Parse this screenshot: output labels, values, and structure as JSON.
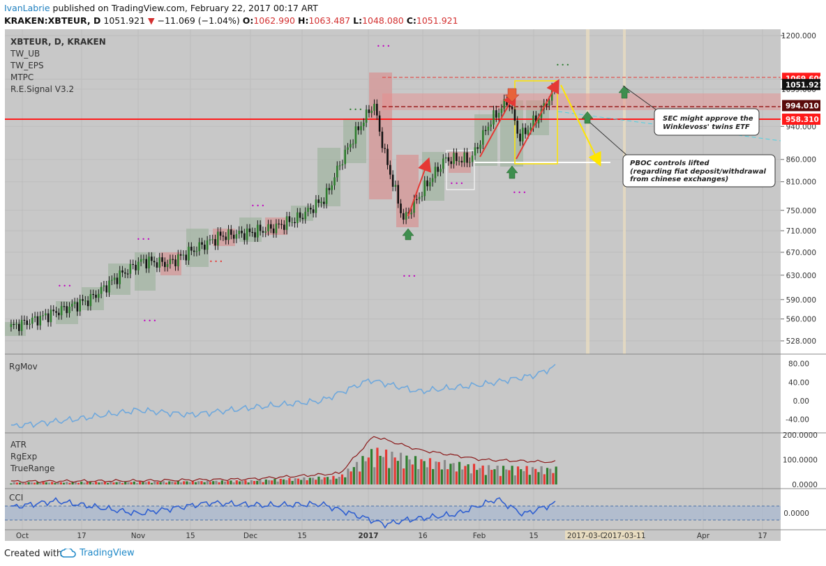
{
  "header": {
    "author": "IvanLabrie",
    "published_text": "published on TradingView.com, February 22, 2017 00:17 ART",
    "symbol": "KRAKEN:XBTEUR, D",
    "last": "1051.921",
    "change": "−11.069 (−1.04%)",
    "o_label": "O:",
    "o": "1062.990",
    "h_label": "H:",
    "h": "1063.487",
    "l_label": "L:",
    "l": "1048.080",
    "c_label": "C:",
    "c": "1051.921"
  },
  "legend": [
    "XBTEUR, D, KRAKEN",
    "TW_UB",
    "TW_EPS",
    "MTPC",
    "R.E.Signal V3.2"
  ],
  "price_labels": [
    {
      "text": "1069.600",
      "value": 1069.6,
      "color": "#ff1a1a"
    },
    {
      "text": "1051.921",
      "value": 1051.921,
      "color": "#111111"
    },
    {
      "text": "994.010",
      "value": 994.01,
      "color": "#5a0a0a"
    },
    {
      "text": "958.310",
      "value": 958.31,
      "color": "#ff1a1a"
    }
  ],
  "annotations": [
    {
      "text": "SEC might approve the Winklevoss' twins ETF"
    },
    {
      "text": "PBOC controls lifted (regarding fiat deposit/withdrawal from chinese exchanges)"
    }
  ],
  "panes": {
    "rgmov": {
      "label": "RgMov"
    },
    "atr": {
      "labels": [
        "ATR",
        "RgExp",
        "TrueRange"
      ]
    },
    "cci": {
      "label": "CCI"
    }
  },
  "colors": {
    "up": "#2e7d2e",
    "down": "#e53935",
    "ma": "#6fa8dc",
    "grid": "#c6c6c6",
    "bg": "#c8c8c8",
    "accent": "#1e88c8"
  },
  "footer": {
    "made_with": "Created with",
    "brand": "TradingView"
  },
  "chart_data": {
    "type": "candlestick",
    "title": "XBTEUR, D, KRAKEN",
    "price_axis": {
      "scale": "log",
      "ticks": [
        "1200.000",
        "1067.000",
        "1039.000",
        "940.000",
        "860.000",
        "810.000",
        "750.000",
        "710.000",
        "670.000",
        "630.000",
        "590.000",
        "560.000",
        "528.000"
      ],
      "ylim": [
        500,
        1240
      ]
    },
    "time_axis": {
      "ticks": [
        "Oct",
        "17",
        "Nov",
        "15",
        "Dec",
        "15",
        "2017",
        "16",
        "Feb",
        "15",
        "2017-03-0",
        "2017-03-11",
        "Apr",
        "17"
      ]
    },
    "close_path": [
      {
        "x": "2016-09-28",
        "close": 548
      },
      {
        "x": "2016-10-05",
        "close": 560
      },
      {
        "x": "2016-10-12",
        "close": 575
      },
      {
        "x": "2016-10-19",
        "close": 590
      },
      {
        "x": "2016-10-26",
        "close": 625
      },
      {
        "x": "2016-11-02",
        "close": 655
      },
      {
        "x": "2016-11-09",
        "close": 650
      },
      {
        "x": "2016-11-16",
        "close": 675
      },
      {
        "x": "2016-11-23",
        "close": 700
      },
      {
        "x": "2016-11-30",
        "close": 705
      },
      {
        "x": "2016-12-07",
        "close": 715
      },
      {
        "x": "2016-12-14",
        "close": 735
      },
      {
        "x": "2016-12-21",
        "close": 775
      },
      {
        "x": "2016-12-25",
        "close": 850
      },
      {
        "x": "2016-12-29",
        "close": 920
      },
      {
        "x": "2017-01-03",
        "close": 1000
      },
      {
        "x": "2017-01-06",
        "close": 870
      },
      {
        "x": "2017-01-11",
        "close": 730
      },
      {
        "x": "2017-01-16",
        "close": 790
      },
      {
        "x": "2017-01-22",
        "close": 860
      },
      {
        "x": "2017-01-29",
        "close": 860
      },
      {
        "x": "2017-02-03",
        "close": 950
      },
      {
        "x": "2017-02-08",
        "close": 1010
      },
      {
        "x": "2017-02-11",
        "close": 910
      },
      {
        "x": "2017-02-16",
        "close": 965
      },
      {
        "x": "2017-02-21",
        "close": 1051.9
      }
    ],
    "levels": [
      {
        "name": "1069.600",
        "value": 1069.6,
        "style": "dashed"
      },
      {
        "name": "994.010",
        "value": 994.01,
        "style": "solid"
      },
      {
        "name": "958.310",
        "value": 958.31,
        "style": "solid"
      },
      {
        "name": "860",
        "value": 860,
        "style": "solid"
      }
    ],
    "series": [
      {
        "name": "RgMov",
        "ticks": [
          "80.00",
          "40.00",
          "0.00",
          "-40.00"
        ],
        "ylim": [
          -60,
          90
        ],
        "x": [
          "2016-09-28",
          "2016-10-15",
          "2016-11-01",
          "2016-11-15",
          "2016-12-01",
          "2016-12-20",
          "2017-01-02",
          "2017-01-15",
          "2017-02-01",
          "2017-02-15",
          "2017-02-21"
        ],
        "values": [
          -55,
          -40,
          -20,
          -30,
          -15,
          0,
          45,
          20,
          35,
          55,
          75
        ]
      },
      {
        "name": "ATR",
        "ticks": [
          "200.0000",
          "100.0000",
          "0.0000"
        ],
        "ylim": [
          0,
          200
        ],
        "x": [
          "2016-09-28",
          "2016-11-01",
          "2016-12-01",
          "2016-12-25",
          "2017-01-03",
          "2017-01-15",
          "2017-02-01",
          "2017-02-21"
        ],
        "values": [
          12,
          15,
          22,
          45,
          195,
          140,
          100,
          90
        ]
      },
      {
        "name": "CCI",
        "ticks": [
          "0.0000"
        ],
        "ylim": [
          -250,
          300
        ],
        "x": [
          "2016-09-28",
          "2016-10-10",
          "2016-11-01",
          "2016-11-20",
          "2016-12-05",
          "2016-12-20",
          "2017-01-06",
          "2017-01-12",
          "2017-01-25",
          "2017-02-05",
          "2017-02-12",
          "2017-02-21"
        ],
        "values": [
          50,
          150,
          -50,
          120,
          80,
          100,
          -220,
          -150,
          -60,
          180,
          -60,
          120
        ]
      }
    ]
  }
}
